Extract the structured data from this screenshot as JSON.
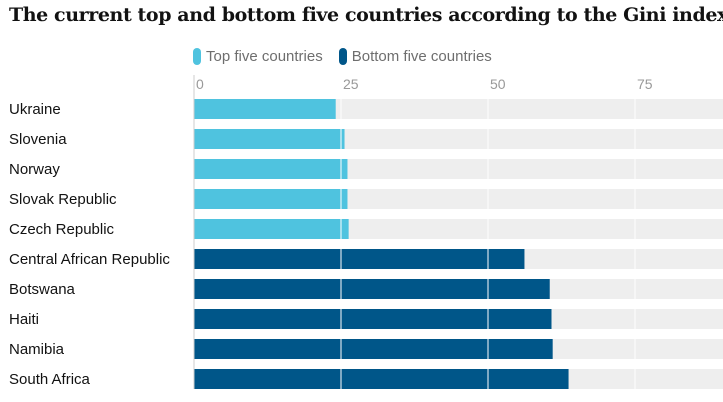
{
  "chart_data": {
    "type": "bar",
    "orientation": "horizontal",
    "title": "The current top and bottom five countries according to the Gini index",
    "xlabel": "",
    "ylabel": "",
    "xlim": [
      0,
      90
    ],
    "ticks": [
      0,
      25,
      50,
      75
    ],
    "grid": true,
    "legend_position": "top",
    "series": [
      {
        "name": "Top five countries",
        "color": "#4fc3df",
        "categories": [
          "Ukraine",
          "Slovenia",
          "Norway",
          "Slovak Republic",
          "Czech Republic"
        ],
        "values": [
          24.1,
          25.6,
          26.1,
          26.1,
          26.3
        ]
      },
      {
        "name": "Bottom five countries",
        "color": "#005689",
        "categories": [
          "Central African Republic",
          "Botswana",
          "Haiti",
          "Namibia",
          "South Africa"
        ],
        "values": [
          56.2,
          60.5,
          60.8,
          61.0,
          63.7
        ]
      }
    ],
    "background_bar_color": "#eeeeee"
  }
}
